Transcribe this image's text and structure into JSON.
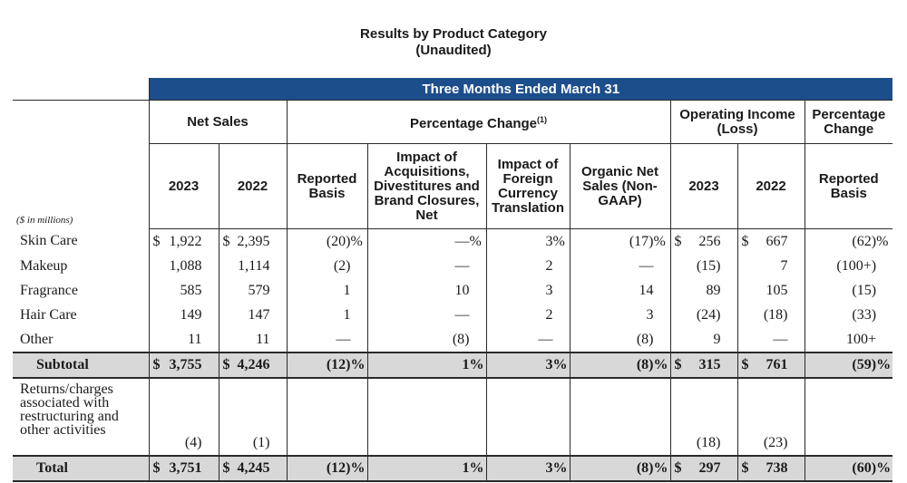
{
  "title": "Results by Product Category",
  "subtitle": "(Unaudited)",
  "header": {
    "period": "Three Months Ended March 31",
    "net_sales": "Net Sales",
    "pct_change": "Percentage Change",
    "pct_change_note": "(1)",
    "op_income": "Operating Income (Loss)",
    "pct_change_right": "Percentage Change",
    "units": "($ in millions)",
    "y2023": "2023",
    "y2022": "2022",
    "reported": "Reported Basis",
    "acq": "Impact of Acquisitions, Divestitures and Brand Closures, Net",
    "fx": "Impact of Foreign Currency Translation",
    "organic": "Organic Net Sales (Non-GAAP)",
    "op2023": "2023",
    "op2022": "2022",
    "reported_right": "Reported Basis"
  },
  "rows": [
    {
      "label": "Skin Care",
      "ns23": "1,922",
      "ns23_cur": "$",
      "ns22": "2,395",
      "ns22_cur": "$",
      "rep": "(20)",
      "rep_pct": "%",
      "acq": "—",
      "acq_pct": "%",
      "fx": "3",
      "fx_pct": "%",
      "org": "(17)",
      "org_pct": "%",
      "op23": "256",
      "op23_cur": "$",
      "op22": "667",
      "op22_cur": "$",
      "chg": "(62)",
      "chg_pct": "%"
    },
    {
      "label": "Makeup",
      "ns23": "1,088",
      "ns22": "1,114",
      "rep": "(2)",
      "acq": "—",
      "fx": "2",
      "org": "—",
      "op23": "(15)",
      "op22": "7",
      "chg": "(100+)"
    },
    {
      "label": "Fragrance",
      "ns23": "585",
      "ns22": "579",
      "rep": "1",
      "acq": "10",
      "fx": "3",
      "org": "14",
      "op23": "89",
      "op22": "105",
      "chg": "(15)"
    },
    {
      "label": "Hair Care",
      "ns23": "149",
      "ns22": "147",
      "rep": "1",
      "acq": "—",
      "fx": "2",
      "org": "3",
      "op23": "(24)",
      "op22": "(18)",
      "chg": "(33)"
    },
    {
      "label": "Other",
      "ns23": "11",
      "ns22": "11",
      "rep": "—",
      "acq": "(8)",
      "fx": "—",
      "org": "(8)",
      "op23": "9",
      "op22": "—",
      "chg": "100+"
    }
  ],
  "subtotal": {
    "label": "Subtotal",
    "ns23_cur": "$",
    "ns23": "3,755",
    "ns22_cur": "$",
    "ns22": "4,246",
    "rep": "(12)",
    "rep_pct": "%",
    "acq": "1",
    "acq_pct": "%",
    "fx": "3",
    "fx_pct": "%",
    "org": "(8)",
    "org_pct": "%",
    "op23_cur": "$",
    "op23": "315",
    "op22_cur": "$",
    "op22": "761",
    "chg": "(59)",
    "chg_pct": "%"
  },
  "returns": {
    "label": "Returns/charges associated with restructuring and other activities",
    "ns23": "(4)",
    "ns22": "(1)",
    "op23": "(18)",
    "op22": "(23)"
  },
  "total": {
    "label": "Total",
    "ns23_cur": "$",
    "ns23": "3,751",
    "ns22_cur": "$",
    "ns22": "4,245",
    "rep": "(12)",
    "rep_pct": "%",
    "acq": "1",
    "acq_pct": "%",
    "fx": "3",
    "fx_pct": "%",
    "org": "(8)",
    "org_pct": "%",
    "op23_cur": "$",
    "op23": "297",
    "op22_cur": "$",
    "op22": "738",
    "chg": "(60)",
    "chg_pct": "%"
  }
}
